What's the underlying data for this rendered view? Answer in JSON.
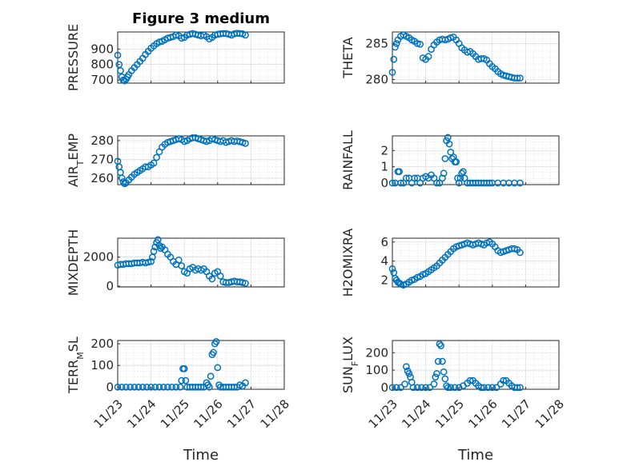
{
  "figure": {
    "title": "Figure 3 medium",
    "xlabel": "Time",
    "time_ticks": [
      "11/23",
      "11/24",
      "11/25",
      "11/26",
      "11/27",
      "11/28"
    ],
    "marker_color": "#0072bd"
  },
  "chart_data": [
    {
      "type": "scatter",
      "name": "pressure",
      "ylabel_parts": [
        "PRESSURE"
      ],
      "ylim": [
        680,
        1010
      ],
      "yticks": [
        700,
        800,
        900
      ],
      "grid": true,
      "title": "Figure 3 medium",
      "x": [
        "11/23 00:00",
        "11/23 01:00",
        "11/23 02:00",
        "11/23 03:00",
        "11/23 04:00",
        "11/23 05:00",
        "11/23 06:00",
        "11/23 07:00",
        "11/23 08:00",
        "11/23 10:00",
        "11/23 12:00",
        "11/23 14:00",
        "11/23 16:00",
        "11/23 18:00",
        "11/23 20:00",
        "11/23 22:00",
        "11/24 00:00",
        "11/24 02:00",
        "11/24 04:00",
        "11/24 06:00",
        "11/24 08:00",
        "11/24 10:00",
        "11/24 12:00",
        "11/24 14:00",
        "11/24 16:00",
        "11/24 18:00",
        "11/24 20:00",
        "11/24 22:00",
        "11/25 00:00",
        "11/25 02:00",
        "11/25 04:00",
        "11/25 06:00",
        "11/25 08:00",
        "11/25 10:00",
        "11/25 12:00",
        "11/25 14:00",
        "11/25 16:00",
        "11/25 18:00",
        "11/25 20:00",
        "11/25 22:00",
        "11/26 00:00",
        "11/26 02:00",
        "11/26 04:00",
        "11/26 06:00",
        "11/26 08:00",
        "11/26 10:00",
        "11/26 12:00",
        "11/26 14:00",
        "11/26 16:00",
        "11/26 18:00",
        "11/26 20:00"
      ],
      "y": [
        860,
        800,
        760,
        720,
        700,
        695,
        705,
        720,
        735,
        760,
        780,
        800,
        820,
        840,
        865,
        885,
        905,
        920,
        935,
        945,
        950,
        960,
        970,
        975,
        980,
        990,
        985,
        970,
        975,
        990,
        995,
        1000,
        995,
        990,
        985,
        990,
        980,
        965,
        975,
        990,
        995,
        998,
        1000,
        1000,
        995,
        990,
        998,
        1002,
        1000,
        998,
        990
      ]
    },
    {
      "type": "scatter",
      "name": "theta",
      "ylabel_parts": [
        "THETA"
      ],
      "ylim": [
        279.5,
        286.6
      ],
      "yticks": [
        280,
        285
      ],
      "grid": true,
      "x": [
        "11/23 00:00",
        "11/23 01:00",
        "11/23 02:00",
        "11/23 03:00",
        "11/23 04:00",
        "11/23 06:00",
        "11/23 08:00",
        "11/23 10:00",
        "11/23 12:00",
        "11/23 14:00",
        "11/23 16:00",
        "11/23 18:00",
        "11/23 20:00",
        "11/23 22:00",
        "11/24 00:00",
        "11/24 02:00",
        "11/24 04:00",
        "11/24 06:00",
        "11/24 08:00",
        "11/24 10:00",
        "11/24 12:00",
        "11/24 14:00",
        "11/24 16:00",
        "11/24 18:00",
        "11/24 20:00",
        "11/24 22:00",
        "11/25 00:00",
        "11/25 02:00",
        "11/25 04:00",
        "11/25 06:00",
        "11/25 08:00",
        "11/25 10:00",
        "11/25 12:00",
        "11/25 14:00",
        "11/25 16:00",
        "11/25 18:00",
        "11/25 20:00",
        "11/25 22:00",
        "11/26 00:00",
        "11/26 02:00",
        "11/26 04:00",
        "11/26 06:00",
        "11/26 08:00",
        "11/26 10:00",
        "11/26 12:00",
        "11/26 14:00",
        "11/26 16:00",
        "11/26 18:00",
        "11/26 20:00"
      ],
      "y": [
        281.0,
        282.8,
        284.5,
        285.0,
        285.5,
        286.0,
        286.2,
        286.0,
        285.8,
        285.5,
        285.3,
        285.0,
        284.9,
        283.0,
        282.8,
        283.2,
        284.2,
        284.8,
        285.2,
        285.5,
        285.6,
        285.5,
        285.6,
        285.8,
        285.9,
        285.5,
        285.0,
        284.4,
        284.1,
        283.8,
        283.9,
        283.6,
        283.2,
        282.8,
        282.9,
        282.9,
        282.7,
        282.2,
        281.8,
        281.5,
        281.1,
        280.8,
        280.6,
        280.5,
        280.4,
        280.3,
        280.2,
        280.2,
        280.2
      ]
    },
    {
      "type": "scatter",
      "name": "air-temp",
      "ylabel_parts": [
        "AIR",
        "T",
        "EMP"
      ],
      "ylim": [
        256.5,
        282.5
      ],
      "yticks": [
        260,
        270,
        280
      ],
      "grid": true,
      "x": [
        "11/23 00:00",
        "11/23 01:00",
        "11/23 02:00",
        "11/23 03:00",
        "11/23 04:00",
        "11/23 05:00",
        "11/23 06:00",
        "11/23 08:00",
        "11/23 10:00",
        "11/23 12:00",
        "11/23 14:00",
        "11/23 16:00",
        "11/23 18:00",
        "11/23 20:00",
        "11/23 22:00",
        "11/24 00:00",
        "11/24 02:00",
        "11/24 04:00",
        "11/24 06:00",
        "11/24 08:00",
        "11/24 10:00",
        "11/24 12:00",
        "11/24 14:00",
        "11/24 16:00",
        "11/24 18:00",
        "11/24 20:00",
        "11/24 22:00",
        "11/25 00:00",
        "11/25 02:00",
        "11/25 04:00",
        "11/25 06:00",
        "11/25 08:00",
        "11/25 10:00",
        "11/25 12:00",
        "11/25 14:00",
        "11/25 16:00",
        "11/25 18:00",
        "11/25 20:00",
        "11/25 22:00",
        "11/26 00:00",
        "11/26 02:00",
        "11/26 04:00",
        "11/26 06:00",
        "11/26 08:00",
        "11/26 10:00",
        "11/26 12:00",
        "11/26 14:00",
        "11/26 16:00",
        "11/26 18:00",
        "11/26 20:00"
      ],
      "y": [
        269,
        266,
        263,
        260,
        258,
        257,
        257.5,
        259,
        260.5,
        262,
        263,
        264,
        265,
        266,
        266,
        267,
        268,
        271,
        274,
        276.5,
        278,
        279,
        279.5,
        280,
        280.5,
        281,
        280.5,
        279.5,
        280,
        281,
        281.5,
        281.5,
        281,
        280.5,
        280,
        279.5,
        280,
        281,
        280.5,
        280,
        279.5,
        280,
        279,
        279.5,
        280,
        279.5,
        279.8,
        279.4,
        279,
        278.5
      ]
    },
    {
      "type": "scatter",
      "name": "rainfall",
      "ylabel_parts": [
        "RAINFALL"
      ],
      "ylim": [
        -0.1,
        2.9
      ],
      "yticks": [
        0,
        1,
        2
      ],
      "grid": true,
      "x": [
        "11/23 00:00",
        "11/23 02:00",
        "11/23 04:00",
        "11/23 05:00",
        "11/23 06:00",
        "11/23 08:00",
        "11/23 10:00",
        "11/23 12:00",
        "11/23 14:00",
        "11/23 16:00",
        "11/23 18:00",
        "11/23 20:00",
        "11/23 22:00",
        "11/24 00:00",
        "11/24 02:00",
        "11/24 04:00",
        "11/24 06:00",
        "11/24 08:00",
        "11/24 10:00",
        "11/24 12:00",
        "11/24 13:00",
        "11/24 14:00",
        "11/24 15:00",
        "11/24 16:00",
        "11/24 17:00",
        "11/24 18:00",
        "11/24 19:00",
        "11/24 20:00",
        "11/24 21:00",
        "11/24 22:00",
        "11/24 23:00",
        "11/25 00:00",
        "11/25 01:00",
        "11/25 02:00",
        "11/25 03:00",
        "11/25 04:00",
        "11/25 06:00",
        "11/25 08:00",
        "11/25 10:00",
        "11/25 12:00",
        "11/25 14:00",
        "11/25 16:00",
        "11/25 18:00",
        "11/25 20:00",
        "11/25 22:00",
        "11/26 00:00",
        "11/26 04:00",
        "11/26 08:00",
        "11/26 12:00",
        "11/26 16:00",
        "11/26 20:00"
      ],
      "y": [
        0,
        0,
        0.7,
        0.7,
        0,
        0,
        0.3,
        0.3,
        0,
        0.3,
        0.3,
        0,
        0.3,
        0.4,
        0.3,
        0.5,
        0.3,
        0,
        0,
        0.3,
        0.6,
        1.5,
        2.6,
        2.8,
        2.4,
        1.9,
        1.5,
        1.6,
        1.3,
        1.3,
        0.3,
        0,
        0.3,
        0.6,
        0.7,
        0.3,
        0,
        0,
        0,
        0,
        0,
        0,
        0,
        0,
        0,
        0,
        0,
        0,
        0,
        0,
        0
      ]
    },
    {
      "type": "scatter",
      "name": "mixdepth",
      "ylabel_parts": [
        "MIXDEPTH"
      ],
      "ylim": [
        -50,
        3300
      ],
      "yticks": [
        0,
        2000
      ],
      "grid": true,
      "x": [
        "11/23 00:00",
        "11/23 02:00",
        "11/23 04:00",
        "11/23 06:00",
        "11/23 08:00",
        "11/23 10:00",
        "11/23 12:00",
        "11/23 14:00",
        "11/23 16:00",
        "11/23 18:00",
        "11/23 20:00",
        "11/23 22:00",
        "11/24 00:00",
        "11/24 01:00",
        "11/24 02:00",
        "11/24 03:00",
        "11/24 04:00",
        "11/24 05:00",
        "11/24 06:00",
        "11/24 07:00",
        "11/24 08:00",
        "11/24 10:00",
        "11/24 12:00",
        "11/24 14:00",
        "11/24 16:00",
        "11/24 18:00",
        "11/24 20:00",
        "11/24 22:00",
        "11/25 00:00",
        "11/25 02:00",
        "11/25 04:00",
        "11/25 06:00",
        "11/25 08:00",
        "11/25 10:00",
        "11/25 12:00",
        "11/25 14:00",
        "11/25 16:00",
        "11/25 18:00",
        "11/25 20:00",
        "11/25 22:00",
        "11/26 00:00",
        "11/26 02:00",
        "11/26 04:00",
        "11/26 06:00",
        "11/26 08:00",
        "11/26 10:00",
        "11/26 12:00",
        "11/26 14:00",
        "11/26 16:00",
        "11/26 18:00",
        "11/26 20:00"
      ],
      "y": [
        1450,
        1500,
        1500,
        1550,
        1550,
        1550,
        1600,
        1600,
        1600,
        1650,
        1600,
        1650,
        1700,
        2000,
        2400,
        2700,
        3000,
        3200,
        2800,
        2600,
        2700,
        2500,
        2200,
        2000,
        1700,
        1500,
        1800,
        1400,
        1000,
        900,
        1200,
        1300,
        1100,
        1200,
        1100,
        1200,
        1000,
        700,
        500,
        900,
        1000,
        700,
        300,
        250,
        250,
        300,
        350,
        300,
        300,
        250,
        200
      ]
    },
    {
      "type": "scatter",
      "name": "h2omixra",
      "ylabel_parts": [
        "H2OMIXRA"
      ],
      "ylim": [
        1.3,
        6.4
      ],
      "yticks": [
        2,
        4,
        6
      ],
      "grid": true,
      "x": [
        "11/23 00:00",
        "11/23 01:00",
        "11/23 02:00",
        "11/23 03:00",
        "11/23 04:00",
        "11/23 05:00",
        "11/23 06:00",
        "11/23 08:00",
        "11/23 10:00",
        "11/23 12:00",
        "11/23 14:00",
        "11/23 16:00",
        "11/23 18:00",
        "11/23 20:00",
        "11/23 22:00",
        "11/24 00:00",
        "11/24 02:00",
        "11/24 04:00",
        "11/24 06:00",
        "11/24 08:00",
        "11/24 10:00",
        "11/24 12:00",
        "11/24 14:00",
        "11/24 16:00",
        "11/24 18:00",
        "11/24 20:00",
        "11/24 22:00",
        "11/25 00:00",
        "11/25 02:00",
        "11/25 04:00",
        "11/25 06:00",
        "11/25 08:00",
        "11/25 10:00",
        "11/25 12:00",
        "11/25 14:00",
        "11/25 16:00",
        "11/25 18:00",
        "11/25 20:00",
        "11/25 22:00",
        "11/26 00:00",
        "11/26 02:00",
        "11/26 04:00",
        "11/26 06:00",
        "11/26 08:00",
        "11/26 10:00",
        "11/26 12:00",
        "11/26 14:00",
        "11/26 16:00",
        "11/26 18:00",
        "11/26 20:00"
      ],
      "y": [
        3.2,
        2.8,
        2.2,
        2.0,
        1.8,
        1.7,
        1.6,
        1.5,
        1.6,
        1.8,
        2.0,
        2.1,
        2.3,
        2.4,
        2.6,
        2.7,
        2.9,
        3.1,
        3.3,
        3.5,
        3.8,
        4.1,
        4.4,
        4.7,
        5.0,
        5.3,
        5.5,
        5.6,
        5.7,
        5.8,
        5.9,
        5.8,
        5.7,
        5.8,
        5.9,
        5.8,
        5.7,
        5.9,
        6.0,
        5.8,
        5.5,
        5.1,
        4.9,
        5.0,
        5.1,
        5.2,
        5.3,
        5.3,
        5.2,
        4.9
      ]
    },
    {
      "type": "scatter",
      "name": "terr-msl",
      "ylabel_parts": [
        "TERR",
        "M",
        "SL"
      ],
      "ylim": [
        -10,
        215
      ],
      "yticks": [
        0,
        100,
        200
      ],
      "grid": true,
      "x": [
        "11/23 00:00",
        "11/23 03:00",
        "11/23 06:00",
        "11/23 09:00",
        "11/23 12:00",
        "11/23 15:00",
        "11/23 18:00",
        "11/23 21:00",
        "11/24 00:00",
        "11/24 03:00",
        "11/24 06:00",
        "11/24 09:00",
        "11/24 12:00",
        "11/24 15:00",
        "11/24 18:00",
        "11/24 21:00",
        "11/24 22:00",
        "11/24 23:00",
        "11/25 00:00",
        "11/25 01:00",
        "11/25 02:00",
        "11/25 04:00",
        "11/25 06:00",
        "11/25 08:00",
        "11/25 10:00",
        "11/25 12:00",
        "11/25 14:00",
        "11/25 16:00",
        "11/25 17:00",
        "11/25 18:00",
        "11/25 19:00",
        "11/25 20:00",
        "11/25 21:00",
        "11/25 22:00",
        "11/25 23:00",
        "11/26 00:00",
        "11/26 01:00",
        "11/26 02:00",
        "11/26 04:00",
        "11/26 06:00",
        "11/26 08:00",
        "11/26 10:00",
        "11/26 12:00",
        "11/26 14:00",
        "11/26 16:00",
        "11/26 18:00",
        "11/26 20:00"
      ],
      "y": [
        0,
        0,
        0,
        0,
        0,
        0,
        0,
        0,
        0,
        0,
        0,
        0,
        0,
        0,
        0,
        0,
        30,
        85,
        85,
        30,
        0,
        0,
        0,
        0,
        0,
        0,
        0,
        20,
        10,
        0,
        50,
        150,
        160,
        200,
        210,
        90,
        10,
        0,
        0,
        0,
        0,
        0,
        0,
        0,
        10,
        5,
        20
      ]
    },
    {
      "type": "scatter",
      "name": "sun-flux",
      "ylabel_parts": [
        "SUN",
        "F",
        "LUX"
      ],
      "ylim": [
        -10,
        270
      ],
      "yticks": [
        0,
        100,
        200
      ],
      "grid": true,
      "x": [
        "11/23 00:00",
        "11/23 03:00",
        "11/23 06:00",
        "11/23 09:00",
        "11/23 10:00",
        "11/23 11:00",
        "11/23 12:00",
        "11/23 13:00",
        "11/23 14:00",
        "11/23 15:00",
        "11/23 18:00",
        "11/23 21:00",
        "11/24 00:00",
        "11/24 03:00",
        "11/24 06:00",
        "11/24 07:00",
        "11/24 08:00",
        "11/24 09:00",
        "11/24 10:00",
        "11/24 11:00",
        "11/24 12:00",
        "11/24 13:00",
        "11/24 14:00",
        "11/24 15:00",
        "11/24 16:00",
        "11/24 18:00",
        "11/24 21:00",
        "11/25 00:00",
        "11/25 03:00",
        "11/25 06:00",
        "11/25 08:00",
        "11/25 10:00",
        "11/25 12:00",
        "11/25 14:00",
        "11/25 16:00",
        "11/25 18:00",
        "11/25 21:00",
        "11/26 00:00",
        "11/26 03:00",
        "11/26 06:00",
        "11/26 08:00",
        "11/26 10:00",
        "11/26 12:00",
        "11/26 14:00",
        "11/26 16:00",
        "11/26 18:00",
        "11/26 20:00"
      ],
      "y": [
        0,
        0,
        0,
        20,
        120,
        95,
        80,
        60,
        30,
        0,
        0,
        0,
        0,
        0,
        20,
        60,
        80,
        150,
        250,
        240,
        150,
        90,
        50,
        10,
        0,
        0,
        0,
        0,
        10,
        25,
        40,
        40,
        25,
        10,
        0,
        0,
        0,
        0,
        0,
        20,
        40,
        40,
        25,
        10,
        0,
        0,
        0
      ]
    }
  ]
}
